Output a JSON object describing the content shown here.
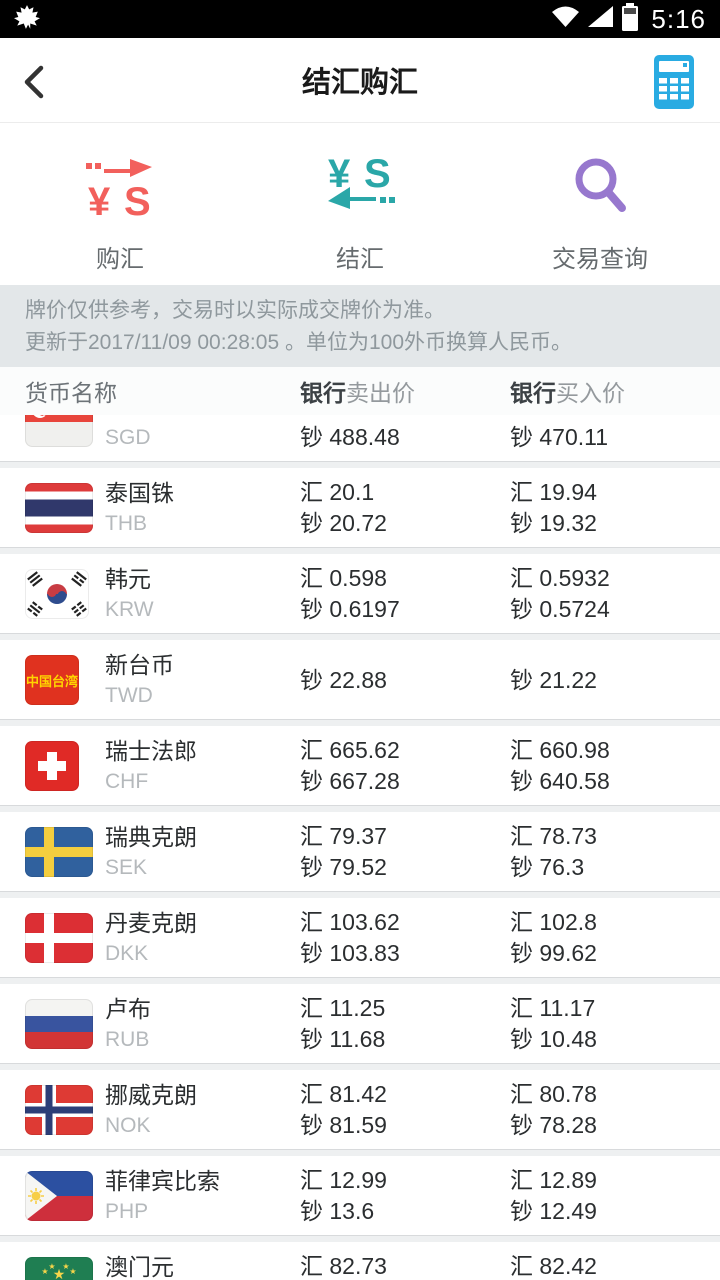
{
  "status_bar": {
    "time": "5:16",
    "icons": [
      "maple-leaf-icon",
      "wifi-icon",
      "cell-signal-icon",
      "battery-icon"
    ]
  },
  "header": {
    "title": "结汇购汇",
    "back_icon": "back-chevron-icon",
    "action_icon": "calculator-icon"
  },
  "tabs": [
    {
      "label": "购汇",
      "icon": "buy-fx-icon",
      "color": "#F2605C"
    },
    {
      "label": "结汇",
      "icon": "settle-fx-icon",
      "color": "#2AA7A8"
    },
    {
      "label": "交易查询",
      "icon": "transaction-search-icon",
      "color": "#9778CE"
    }
  ],
  "notice": {
    "line1": "牌价仅供参考，交易时以实际成交牌价为准。",
    "line2": "更新于2017/11/09 00:28:05 。单位为100外币换算人民币。"
  },
  "table": {
    "header": {
      "col1": "货币名称",
      "col2_strong": "银行",
      "col2_light": "卖出价",
      "col3_strong": "银行",
      "col3_light": "买入价"
    },
    "rows": [
      {
        "name": "",
        "code": "SGD",
        "flag": "SG",
        "sell": [
          "",
          "钞 488.48"
        ],
        "buy": [
          "",
          "钞 470.11"
        ],
        "clipped": true
      },
      {
        "name": "泰国铢",
        "code": "THB",
        "flag": "TH",
        "sell": [
          "汇 20.1",
          "钞 20.72"
        ],
        "buy": [
          "汇 19.94",
          "钞 19.32"
        ]
      },
      {
        "name": "韩元",
        "code": "KRW",
        "flag": "KR",
        "sell": [
          "汇 0.598",
          "钞 0.6197"
        ],
        "buy": [
          "汇 0.5932",
          "钞 0.5724"
        ]
      },
      {
        "name": "新台币",
        "code": "TWD",
        "flag": "TW",
        "sell": [
          "钞 22.88"
        ],
        "buy": [
          "钞 21.22"
        ]
      },
      {
        "name": "瑞士法郎",
        "code": "CHF",
        "flag": "CH",
        "sell": [
          "汇 665.62",
          "钞 667.28"
        ],
        "buy": [
          "汇 660.98",
          "钞 640.58"
        ]
      },
      {
        "name": "瑞典克朗",
        "code": "SEK",
        "flag": "SE",
        "sell": [
          "汇 79.37",
          "钞 79.52"
        ],
        "buy": [
          "汇 78.73",
          "钞 76.3"
        ]
      },
      {
        "name": "丹麦克朗",
        "code": "DKK",
        "flag": "DK",
        "sell": [
          "汇 103.62",
          "钞 103.83"
        ],
        "buy": [
          "汇 102.8",
          "钞 99.62"
        ]
      },
      {
        "name": "卢布",
        "code": "RUB",
        "flag": "RU",
        "sell": [
          "汇 11.25",
          "钞 11.68"
        ],
        "buy": [
          "汇 11.17",
          "钞 10.48"
        ]
      },
      {
        "name": "挪威克朗",
        "code": "NOK",
        "flag": "NO",
        "sell": [
          "汇 81.42",
          "钞 81.59"
        ],
        "buy": [
          "汇 80.78",
          "钞 78.28"
        ]
      },
      {
        "name": "菲律宾比索",
        "code": "PHP",
        "flag": "PH",
        "sell": [
          "汇 12.99",
          "钞 13.6"
        ],
        "buy": [
          "汇 12.89",
          "钞 12.49"
        ]
      },
      {
        "name": "澳门元",
        "code": "",
        "flag": "MO",
        "sell": [
          "汇 82.73",
          ""
        ],
        "buy": [
          "汇 82.42",
          ""
        ]
      }
    ]
  },
  "colors": {
    "calculator": "#29ABE2",
    "buy_icon": "#F2605C",
    "settle_icon": "#2AA7A8",
    "search_icon": "#9778CE",
    "notice_bg": "#E3E7E9"
  }
}
